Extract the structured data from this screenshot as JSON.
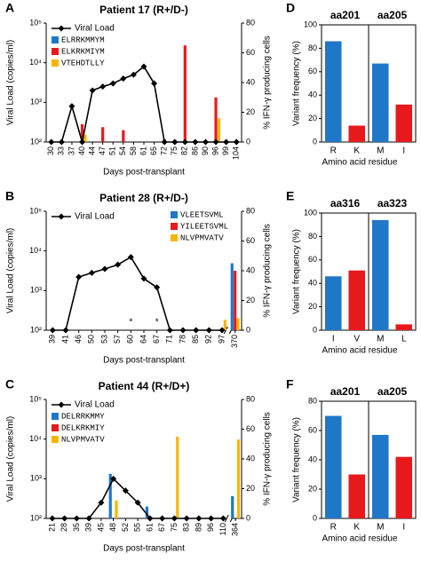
{
  "chart_data": [
    {
      "type": "combo",
      "panel": "A",
      "title": "Patient 17  (R+/D-)",
      "xlabel": "Days post-transplant",
      "ylabel": "Viral Load (copies/ml)",
      "y2label": "% IFN-γ producing cells",
      "yscale": "log",
      "ylim": [
        100,
        100000
      ],
      "yticks": [
        {
          "value": 100,
          "label": "10²"
        },
        {
          "value": 1000,
          "label": "10³"
        },
        {
          "value": 10000,
          "label": "10⁴"
        },
        {
          "value": 100000,
          "label": "10⁵"
        }
      ],
      "y2lim": [
        0,
        80
      ],
      "y2ticks": [
        0,
        20,
        40,
        60,
        80
      ],
      "categories": [
        "30",
        "33",
        "37",
        "40",
        "44",
        "47",
        "51",
        "54",
        "58",
        "61",
        "65",
        "72",
        "75",
        "82",
        "86",
        "90",
        "96",
        "99",
        "104"
      ],
      "series": [
        {
          "name": "Viral Load",
          "type": "line",
          "color": "#000000",
          "values": [
            100,
            100,
            800,
            100,
            2000,
            2500,
            3000,
            4000,
            5000,
            8000,
            3000,
            100,
            100,
            100,
            100,
            100,
            100,
            100,
            100
          ]
        },
        {
          "name": "ELRRKMMYM",
          "type": "bar",
          "axis": "y2",
          "color": "#1f77c8",
          "values": [
            null,
            null,
            null,
            null,
            null,
            null,
            null,
            null,
            null,
            null,
            null,
            null,
            null,
            null,
            null,
            null,
            null,
            null,
            null
          ]
        },
        {
          "name": "ELKRKMIYM",
          "type": "bar",
          "axis": "y2",
          "color": "#e8191c",
          "values": [
            null,
            null,
            null,
            12,
            null,
            10,
            null,
            8,
            null,
            null,
            null,
            2,
            null,
            65,
            null,
            null,
            30,
            null,
            null
          ]
        },
        {
          "name": "VTEHDTLLY",
          "type": "bar",
          "axis": "y2",
          "color": "#f7b500",
          "values": [
            null,
            null,
            null,
            5,
            null,
            null,
            null,
            null,
            null,
            null,
            null,
            null,
            null,
            null,
            null,
            null,
            16,
            null,
            null
          ]
        }
      ]
    },
    {
      "type": "combo",
      "panel": "B",
      "title": "Patient 28  (R+/D-)",
      "xlabel": "Days post-transplant",
      "ylabel": "Viral Load (copies/ml)",
      "y2label": "% IFN-γ producing cells",
      "yscale": "log",
      "ylim": [
        100,
        100000
      ],
      "yticks": [
        {
          "value": 100,
          "label": "10²"
        },
        {
          "value": 1000,
          "label": "10³"
        },
        {
          "value": 10000,
          "label": "10⁴"
        },
        {
          "value": 100000,
          "label": "10⁵"
        }
      ],
      "y2lim": [
        0,
        80
      ],
      "y2ticks": [
        0,
        20,
        40,
        60,
        80
      ],
      "categories": [
        "39",
        "41",
        "46",
        "50",
        "53",
        "57",
        "60",
        "64",
        "67",
        "71",
        "78",
        "85",
        "92",
        "97",
        "370"
      ],
      "series": [
        {
          "name": "Viral Load",
          "type": "line",
          "color": "#000000",
          "values": [
            100,
            100,
            2200,
            2800,
            3500,
            4500,
            7000,
            2000,
            1200,
            100,
            100,
            100,
            100,
            100,
            null
          ]
        },
        {
          "name": "VLEETSVML",
          "type": "bar",
          "axis": "y2",
          "color": "#1f77c8",
          "values": [
            null,
            null,
            null,
            null,
            null,
            null,
            null,
            null,
            null,
            null,
            null,
            null,
            null,
            null,
            45
          ]
        },
        {
          "name": "YILEETSVML",
          "type": "bar",
          "axis": "y2",
          "color": "#e8191c",
          "values": [
            null,
            null,
            null,
            null,
            null,
            null,
            null,
            null,
            null,
            null,
            null,
            null,
            null,
            null,
            40
          ]
        },
        {
          "name": "NLVPMVATV",
          "type": "bar",
          "axis": "y2",
          "color": "#f7b500",
          "values": [
            null,
            null,
            null,
            null,
            null,
            null,
            null,
            null,
            null,
            null,
            null,
            null,
            null,
            7,
            8
          ]
        }
      ],
      "annotations": [
        {
          "text": "*",
          "x": "60"
        },
        {
          "text": "*",
          "x": "67"
        }
      ]
    },
    {
      "type": "combo",
      "panel": "C",
      "title": "Patient 44  (R+/D+)",
      "xlabel": "Days post-transplant",
      "ylabel": "Viral Load (copies/ml)",
      "y2label": "% IFN-γ producing cells",
      "yscale": "log",
      "ylim": [
        100,
        100000
      ],
      "yticks": [
        {
          "value": 100,
          "label": "10²"
        },
        {
          "value": 1000,
          "label": "10³"
        },
        {
          "value": 10000,
          "label": "10⁴"
        },
        {
          "value": 100000,
          "label": "10⁵"
        }
      ],
      "y2lim": [
        0,
        80
      ],
      "y2ticks": [
        0,
        20,
        40,
        60,
        80
      ],
      "categories": [
        "21",
        "28",
        "35",
        "39",
        "45",
        "48",
        "52",
        "55",
        "61",
        "67",
        "75",
        "83",
        "89",
        "96",
        "110",
        "364"
      ],
      "series": [
        {
          "name": "Viral Load",
          "type": "line",
          "color": "#000000",
          "values": [
            100,
            100,
            100,
            100,
            250,
            1000,
            500,
            250,
            100,
            100,
            100,
            100,
            100,
            100,
            100,
            null
          ]
        },
        {
          "name": "DELRRKMMY",
          "type": "bar",
          "axis": "y2",
          "color": "#1f77c8",
          "values": [
            null,
            null,
            null,
            null,
            null,
            30,
            null,
            null,
            8,
            null,
            null,
            null,
            null,
            null,
            null,
            15
          ]
        },
        {
          "name": "DELKRKMIY",
          "type": "bar",
          "axis": "y2",
          "color": "#e8191c",
          "values": [
            null,
            null,
            null,
            null,
            null,
            null,
            null,
            null,
            null,
            null,
            null,
            null,
            null,
            null,
            null,
            null
          ]
        },
        {
          "name": "NLVPMVATV",
          "type": "bar",
          "axis": "y2",
          "color": "#f7b500",
          "values": [
            null,
            null,
            null,
            null,
            null,
            12,
            null,
            null,
            null,
            null,
            55,
            null,
            null,
            null,
            null,
            53
          ]
        }
      ]
    },
    {
      "type": "bar",
      "panel": "D",
      "groups": [
        "aa201",
        "aa205"
      ],
      "categories": [
        "R",
        "K",
        "M",
        "I"
      ],
      "values": [
        86,
        14,
        67,
        32
      ],
      "colors": [
        "#1f77c8",
        "#e8191c",
        "#1f77c8",
        "#e8191c"
      ],
      "ylabel": "Variant frequency (%)",
      "xlabel": "Amino acid residue",
      "ylim": [
        0,
        100
      ],
      "yticks": [
        0,
        20,
        40,
        60,
        80,
        100
      ]
    },
    {
      "type": "bar",
      "panel": "E",
      "groups": [
        "aa316",
        "aa323"
      ],
      "categories": [
        "I",
        "V",
        "M",
        "L"
      ],
      "values": [
        46,
        51,
        94,
        5
      ],
      "colors": [
        "#1f77c8",
        "#e8191c",
        "#1f77c8",
        "#e8191c"
      ],
      "ylabel": "Variant frequency (%)",
      "xlabel": "Amino acid residue",
      "ylim": [
        0,
        100
      ],
      "yticks": [
        0,
        20,
        40,
        60,
        80,
        100
      ]
    },
    {
      "type": "bar",
      "panel": "F",
      "groups": [
        "aa201",
        "aa205"
      ],
      "categories": [
        "R",
        "K",
        "M",
        "I"
      ],
      "values": [
        70,
        30,
        57,
        42
      ],
      "colors": [
        "#1f77c8",
        "#e8191c",
        "#1f77c8",
        "#e8191c"
      ],
      "ylabel": "Variant frequency (%)",
      "xlabel": "Amino acid residue",
      "ylim": [
        0,
        80
      ],
      "yticks": [
        0,
        20,
        40,
        60,
        80
      ]
    }
  ]
}
